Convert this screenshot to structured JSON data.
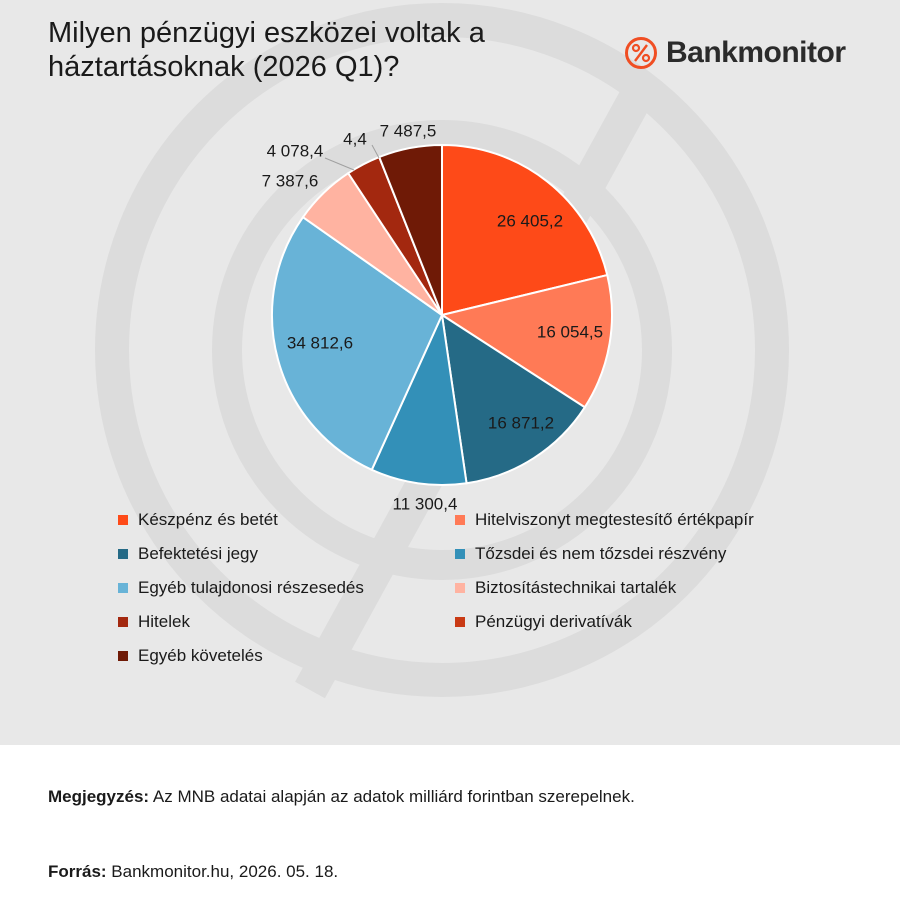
{
  "title": "Milyen pénzügyi eszközei voltak a háztartásoknak (2026 Q1)?",
  "brand": {
    "name": "Bankmonitor",
    "icon": "percent-icon",
    "color": "#f04e23"
  },
  "chart_data": {
    "type": "pie",
    "categories": [
      "Készpénz és betét",
      "Hitelviszonyt megtestesítő értékpapír",
      "Befektetési jegy",
      "Tőzsdei és nem tőzsdei részvény",
      "Egyéb tulajdonosi részesedés",
      "Biztosítástechnikai tartalék",
      "Hitelek",
      "Pénzügyi derivatívák",
      "Egyéb követelés"
    ],
    "values": [
      26405.2,
      16054.5,
      16871.2,
      11300.4,
      34812.6,
      7387.6,
      4078.4,
      4.4,
      7487.5
    ],
    "value_labels": [
      "26 405,2",
      "16 054,5",
      "16 871,2",
      "11 300,4",
      "34 812,6",
      "7 387,6",
      "4 078,4",
      "4,4",
      "7 487,5"
    ],
    "colors": [
      "#fe4a18",
      "#ff7a56",
      "#256a86",
      "#3390b8",
      "#68b3d7",
      "#ffb3a1",
      "#a3280f",
      "#c93a14",
      "#6f1a06"
    ],
    "legend_placement": "bottom"
  },
  "legend": [
    {
      "label": "Készpénz és betét",
      "color": "#fe4a18"
    },
    {
      "label": "Hitelviszonyt megtestesítő értékpapír",
      "color": "#ff7a56"
    },
    {
      "label": "Befektetési jegy",
      "color": "#256a86"
    },
    {
      "label": "Tőzsdei és nem tőzsdei részvény",
      "color": "#3390b8"
    },
    {
      "label": "Egyéb tulajdonosi részesedés",
      "color": "#68b3d7"
    },
    {
      "label": "Biztosítástechnikai tartalék",
      "color": "#ffb3a1"
    },
    {
      "label": "Hitelek",
      "color": "#a3280f"
    },
    {
      "label": "Pénzügyi derivatívák",
      "color": "#c93a14"
    },
    {
      "label": "Egyéb követelés",
      "color": "#6f1a06"
    }
  ],
  "footer": {
    "note_label": "Megjegyzés:",
    "note_text": " Az MNB adatai alapján az adatok milliárd forintban szerepelnek.",
    "source_label": "Forrás:",
    "source_text": " Bankmonitor.hu, 2026. 05. 18."
  }
}
